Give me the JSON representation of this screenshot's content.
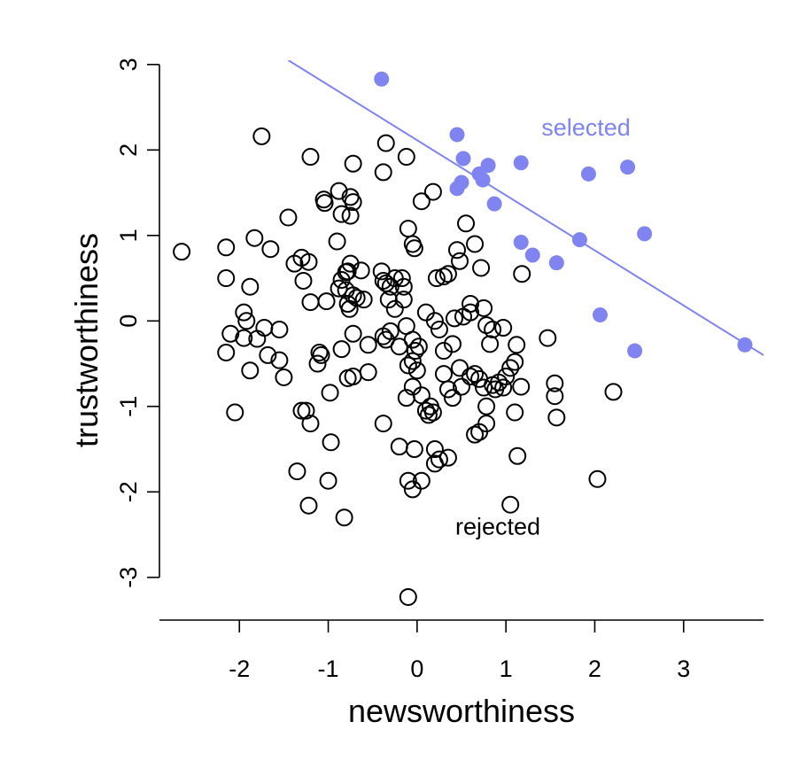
{
  "chart_data": {
    "type": "scatter",
    "xlabel": "newsworthiness",
    "ylabel": "trustworthiness",
    "xlim": [
      -2.9,
      3.9
    ],
    "ylim": [
      -3.5,
      3.05
    ],
    "xticks": [
      -2,
      -1,
      0,
      1,
      2,
      3
    ],
    "yticks": [
      -3,
      -2,
      -1,
      0,
      1,
      2,
      3
    ],
    "colors": {
      "selected": "#7f84f0",
      "rejected": "#000000",
      "line": "#7f84f0"
    },
    "line": {
      "x": [
        -1.45,
        3.9
      ],
      "y": [
        3.05,
        -0.4
      ]
    },
    "annotations": [
      {
        "text": "selected",
        "x": 1.4,
        "y": 2.17,
        "color": "#7f84f0"
      },
      {
        "text": "rejected",
        "x": 0.43,
        "y": -2.5,
        "color": "#000000"
      }
    ],
    "series": [
      {
        "name": "selected",
        "marker": "filled-circle",
        "points": [
          [
            -0.4,
            2.83
          ],
          [
            0.45,
            2.18
          ],
          [
            0.52,
            1.9
          ],
          [
            0.8,
            1.82
          ],
          [
            1.17,
            1.85
          ],
          [
            1.93,
            1.72
          ],
          [
            2.37,
            1.8
          ],
          [
            0.5,
            1.62
          ],
          [
            0.45,
            1.55
          ],
          [
            0.7,
            1.72
          ],
          [
            0.74,
            1.65
          ],
          [
            0.87,
            1.37
          ],
          [
            1.17,
            0.92
          ],
          [
            1.3,
            0.77
          ],
          [
            1.57,
            0.68
          ],
          [
            1.83,
            0.95
          ],
          [
            2.56,
            1.02
          ],
          [
            2.06,
            0.07
          ],
          [
            2.45,
            -0.35
          ],
          [
            3.69,
            -0.28
          ]
        ]
      },
      {
        "name": "rejected",
        "marker": "open-circle",
        "points": [
          [
            -2.65,
            0.81
          ],
          [
            -2.15,
            0.86
          ],
          [
            -1.75,
            2.16
          ],
          [
            -1.65,
            0.84
          ],
          [
            -1.83,
            0.97
          ],
          [
            -2.15,
            0.5
          ],
          [
            -1.88,
            0.4
          ],
          [
            -1.95,
            0.1
          ],
          [
            -1.92,
            0.0
          ],
          [
            -2.1,
            -0.15
          ],
          [
            -2.15,
            -0.37
          ],
          [
            -1.95,
            -0.2
          ],
          [
            -1.8,
            -0.21
          ],
          [
            -1.72,
            -0.08
          ],
          [
            -1.68,
            -0.4
          ],
          [
            -1.55,
            -0.1
          ],
          [
            -1.55,
            -0.46
          ],
          [
            -1.5,
            -0.66
          ],
          [
            -1.88,
            -0.58
          ],
          [
            -2.05,
            -1.07
          ],
          [
            -1.45,
            1.21
          ],
          [
            -1.38,
            0.67
          ],
          [
            -1.3,
            0.74
          ],
          [
            -1.28,
            0.47
          ],
          [
            -1.22,
            0.69
          ],
          [
            -1.2,
            1.92
          ],
          [
            -1.2,
            0.22
          ],
          [
            -1.1,
            -0.37
          ],
          [
            -1.12,
            -0.5
          ],
          [
            -1.08,
            -0.4
          ],
          [
            -1.3,
            -1.05
          ],
          [
            -1.25,
            -1.05
          ],
          [
            -1.2,
            -1.2
          ],
          [
            -1.35,
            -1.76
          ],
          [
            -1.22,
            -2.16
          ],
          [
            -1.05,
            1.42
          ],
          [
            -1.04,
            1.38
          ],
          [
            -0.88,
            1.52
          ],
          [
            -0.85,
            1.25
          ],
          [
            -0.75,
            1.45
          ],
          [
            -0.72,
            1.39
          ],
          [
            -0.75,
            1.23
          ],
          [
            -0.72,
            1.84
          ],
          [
            -0.9,
            0.93
          ],
          [
            -0.8,
            0.57
          ],
          [
            -0.78,
            0.58
          ],
          [
            -0.75,
            0.67
          ],
          [
            -0.85,
            0.48
          ],
          [
            -0.88,
            0.38
          ],
          [
            -0.8,
            0.36
          ],
          [
            -0.72,
            0.3
          ],
          [
            -0.68,
            0.27
          ],
          [
            -0.6,
            0.25
          ],
          [
            -0.78,
            0.2
          ],
          [
            -0.76,
            0.14
          ],
          [
            -1.02,
            0.23
          ],
          [
            -0.72,
            -0.15
          ],
          [
            -0.85,
            -0.33
          ],
          [
            -0.98,
            -0.84
          ],
          [
            -0.78,
            -0.67
          ],
          [
            -0.72,
            -0.65
          ],
          [
            -0.55,
            -0.6
          ],
          [
            -0.55,
            -0.28
          ],
          [
            -0.97,
            -1.42
          ],
          [
            -1.0,
            -1.87
          ],
          [
            -0.82,
            -2.3
          ],
          [
            -0.63,
            0.59
          ],
          [
            -0.4,
            0.58
          ],
          [
            -0.38,
            0.47
          ],
          [
            -0.35,
            0.44
          ],
          [
            -0.3,
            0.4
          ],
          [
            -0.25,
            0.5
          ],
          [
            -0.17,
            0.5
          ],
          [
            -0.15,
            0.4
          ],
          [
            -0.32,
            0.25
          ],
          [
            -0.25,
            0.14
          ],
          [
            -0.38,
            -0.18
          ],
          [
            -0.35,
            -0.22
          ],
          [
            -0.3,
            -0.12
          ],
          [
            -0.2,
            -0.3
          ],
          [
            -0.12,
            -0.06
          ],
          [
            -0.1,
            1.08
          ],
          [
            -0.05,
            0.9
          ],
          [
            -0.03,
            0.85
          ],
          [
            0.05,
            1.4
          ],
          [
            0.18,
            1.51
          ],
          [
            -0.35,
            2.08
          ],
          [
            -0.12,
            1.92
          ],
          [
            -0.38,
            1.74
          ],
          [
            -0.15,
            0.25
          ],
          [
            -0.05,
            -0.22
          ],
          [
            -0.02,
            -0.35
          ],
          [
            0.02,
            -0.3
          ],
          [
            -0.05,
            -0.47
          ],
          [
            -0.1,
            -0.52
          ],
          [
            0.0,
            -0.58
          ],
          [
            -0.12,
            -0.9
          ],
          [
            -0.05,
            -0.77
          ],
          [
            -0.38,
            -1.2
          ],
          [
            -0.2,
            -1.47
          ],
          [
            -0.03,
            -1.5
          ],
          [
            -0.1,
            -1.87
          ],
          [
            -0.05,
            -1.97
          ],
          [
            0.05,
            -1.87
          ],
          [
            -0.1,
            -3.23
          ],
          [
            0.05,
            -0.87
          ],
          [
            0.1,
            -1.05
          ],
          [
            0.13,
            -1.1
          ],
          [
            0.18,
            -1.07
          ],
          [
            0.15,
            -1.0
          ],
          [
            0.2,
            -1.5
          ],
          [
            0.25,
            -1.62
          ],
          [
            0.35,
            -1.6
          ],
          [
            0.2,
            -1.67
          ],
          [
            0.1,
            0.1
          ],
          [
            0.22,
            0.5
          ],
          [
            0.3,
            0.52
          ],
          [
            0.35,
            0.55
          ],
          [
            0.48,
            0.7
          ],
          [
            0.55,
            1.14
          ],
          [
            0.45,
            0.83
          ],
          [
            0.65,
            0.9
          ],
          [
            0.72,
            0.62
          ],
          [
            0.6,
            0.2
          ],
          [
            0.6,
            0.1
          ],
          [
            0.52,
            0.05
          ],
          [
            0.42,
            0.03
          ],
          [
            0.75,
            0.15
          ],
          [
            0.78,
            -0.05
          ],
          [
            0.85,
            -0.1
          ],
          [
            0.82,
            -0.27
          ],
          [
            0.97,
            -0.08
          ],
          [
            0.2,
            0.0
          ],
          [
            0.25,
            -0.1
          ],
          [
            0.4,
            -0.27
          ],
          [
            0.3,
            -0.35
          ],
          [
            0.3,
            -0.62
          ],
          [
            0.48,
            -0.55
          ],
          [
            0.35,
            -0.8
          ],
          [
            0.5,
            -0.77
          ],
          [
            0.4,
            -0.9
          ],
          [
            0.6,
            -0.65
          ],
          [
            0.65,
            -0.62
          ],
          [
            0.7,
            -0.68
          ],
          [
            0.75,
            -0.78
          ],
          [
            0.85,
            -0.75
          ],
          [
            0.88,
            -0.8
          ],
          [
            0.92,
            -0.72
          ],
          [
            0.97,
            -0.78
          ],
          [
            1.0,
            -0.65
          ],
          [
            1.05,
            -0.55
          ],
          [
            1.1,
            -0.48
          ],
          [
            1.12,
            -0.28
          ],
          [
            1.17,
            -0.77
          ],
          [
            1.1,
            -1.07
          ],
          [
            1.13,
            -1.58
          ],
          [
            0.78,
            -1.0
          ],
          [
            0.78,
            -1.2
          ],
          [
            0.7,
            -1.3
          ],
          [
            0.65,
            -1.33
          ],
          [
            1.05,
            -2.15
          ],
          [
            1.47,
            -0.2
          ],
          [
            1.55,
            -0.73
          ],
          [
            1.55,
            -0.88
          ],
          [
            1.57,
            -1.13
          ],
          [
            1.18,
            0.55
          ],
          [
            2.21,
            -0.83
          ],
          [
            2.03,
            -1.85
          ]
        ]
      }
    ]
  }
}
